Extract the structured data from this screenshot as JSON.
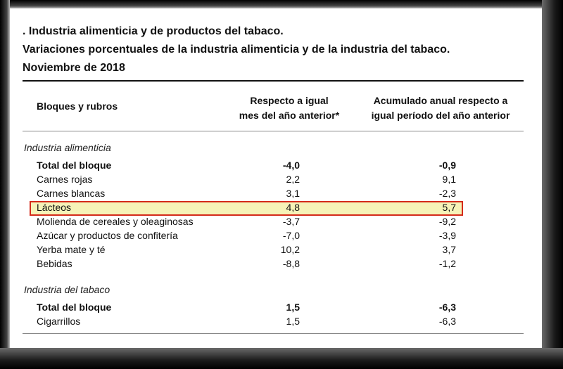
{
  "title": {
    "line1": ". Industria alimenticia y de productos del tabaco.",
    "line2": "Variaciones porcentuales de la industria alimenticia y de la industria del tabaco.",
    "line3": "Noviembre de 2018"
  },
  "headers": {
    "col0": "Bloques y rubros",
    "col1_l1": "Respecto a igual",
    "col1_l2": "mes del año anterior*",
    "col2_l1": "Acumulado anual respecto a",
    "col2_l2": "igual período del año anterior"
  },
  "sections": [
    {
      "name": "Industria alimenticia",
      "rows": [
        {
          "label": "Total del bloque",
          "v1": "-4,0",
          "v2": "-0,9",
          "bold": true
        },
        {
          "label": "Carnes rojas",
          "v1": "2,2",
          "v2": "9,1"
        },
        {
          "label": "Carnes blancas",
          "v1": "3,1",
          "v2": "-2,3"
        },
        {
          "label": "Lácteos",
          "v1": "4,8",
          "v2": "5,7",
          "highlighted": true
        },
        {
          "label": "Molienda de cereales y oleaginosas",
          "v1": "-3,7",
          "v2": "-9,2"
        },
        {
          "label": "Azúcar y productos de confitería",
          "v1": "-7,0",
          "v2": "-3,9"
        },
        {
          "label": "Yerba mate y té",
          "v1": "10,2",
          "v2": "3,7"
        },
        {
          "label": "Bebidas",
          "v1": "-8,8",
          "v2": "-1,2"
        }
      ]
    },
    {
      "name": "Industria del tabaco",
      "rows": [
        {
          "label": "Total del bloque",
          "v1": "1,5",
          "v2": "-6,3",
          "bold": true
        },
        {
          "label": "Cigarrillos",
          "v1": "1,5",
          "v2": "-6,3"
        }
      ]
    }
  ],
  "colors": {
    "highlight_fill": "#f6f3b8",
    "highlight_border": "#d42a1a"
  }
}
